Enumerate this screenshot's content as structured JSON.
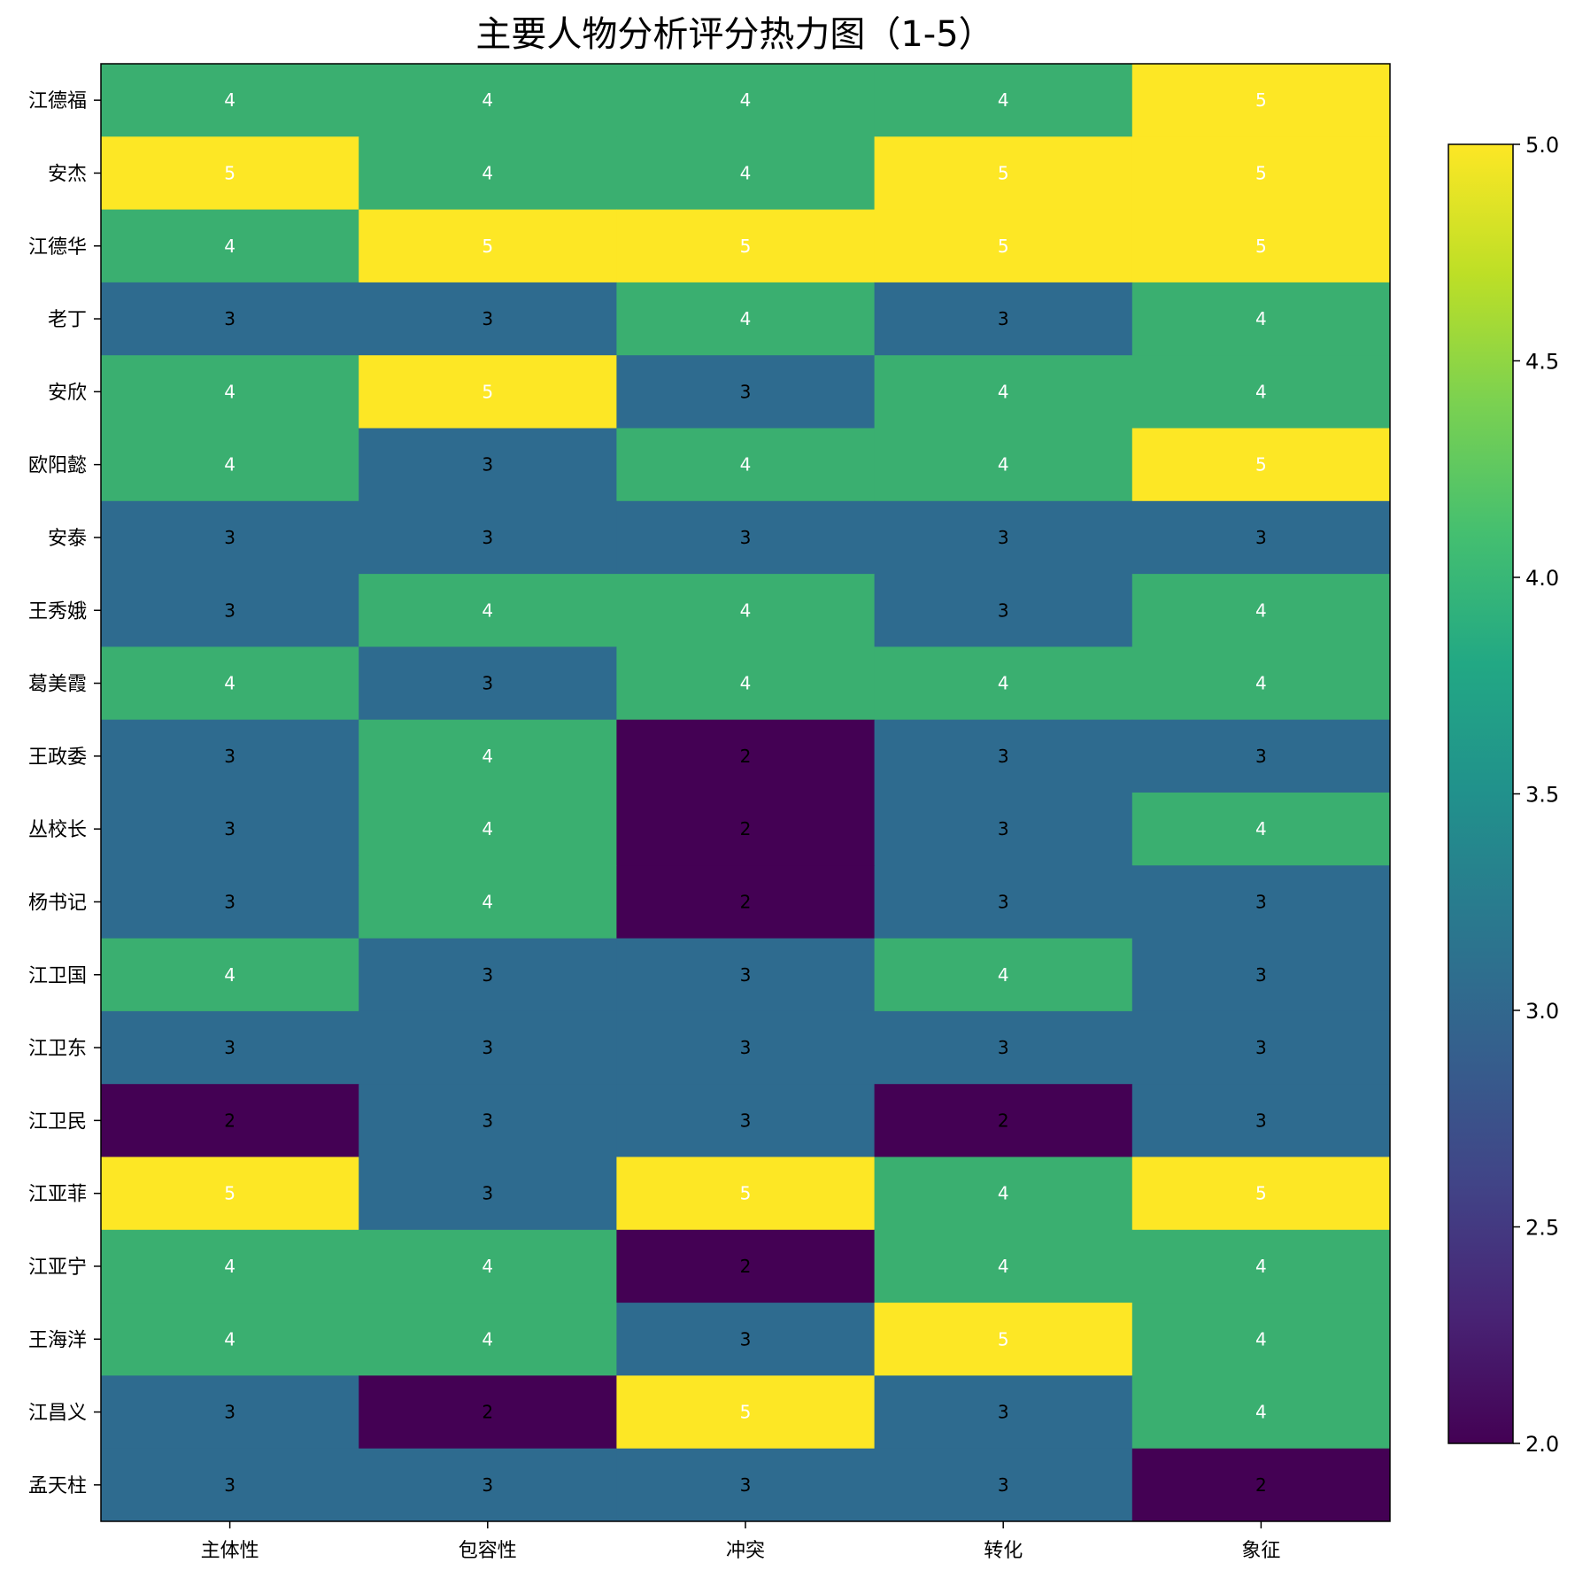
{
  "chart_data": {
    "type": "heatmap",
    "title": "主要人物分析评分热力图（1-5）",
    "xlabel": "",
    "ylabel": "",
    "x_categories": [
      "主体性",
      "包容性",
      "冲突",
      "转化",
      "象征"
    ],
    "y_categories": [
      "江德福",
      "安杰",
      "江德华",
      "老丁",
      "安欣",
      "欧阳懿",
      "安泰",
      "王秀娥",
      "葛美霞",
      "王政委",
      "丛校长",
      "杨书记",
      "江卫国",
      "江卫东",
      "江卫民",
      "江亚菲",
      "江亚宁",
      "王海洋",
      "江昌义",
      "孟天柱"
    ],
    "values": [
      [
        4,
        4,
        4,
        4,
        5
      ],
      [
        5,
        4,
        4,
        5,
        5
      ],
      [
        4,
        5,
        5,
        5,
        5
      ],
      [
        3,
        3,
        4,
        3,
        4
      ],
      [
        4,
        5,
        3,
        4,
        4
      ],
      [
        4,
        3,
        4,
        4,
        5
      ],
      [
        3,
        3,
        3,
        3,
        3
      ],
      [
        3,
        4,
        4,
        3,
        4
      ],
      [
        4,
        3,
        4,
        4,
        4
      ],
      [
        3,
        4,
        2,
        3,
        3
      ],
      [
        3,
        4,
        2,
        3,
        4
      ],
      [
        3,
        4,
        2,
        3,
        3
      ],
      [
        4,
        3,
        3,
        4,
        3
      ],
      [
        3,
        3,
        3,
        3,
        3
      ],
      [
        2,
        3,
        3,
        2,
        3
      ],
      [
        5,
        3,
        5,
        4,
        5
      ],
      [
        4,
        4,
        2,
        4,
        4
      ],
      [
        4,
        4,
        3,
        5,
        4
      ],
      [
        3,
        2,
        5,
        3,
        4
      ],
      [
        3,
        3,
        3,
        3,
        2
      ]
    ],
    "cell_labels": true,
    "colormap": "viridis",
    "colors": {
      "2": "#440154",
      "3": "#2e6b8f",
      "4": "#3aaf70",
      "5": "#fde725"
    },
    "colorbar": {
      "range": [
        2.0,
        5.0
      ],
      "ticks": [
        "2.0",
        "2.5",
        "3.0",
        "3.5",
        "4.0",
        "4.5",
        "5.0"
      ],
      "position": "right"
    },
    "grid": false
  }
}
